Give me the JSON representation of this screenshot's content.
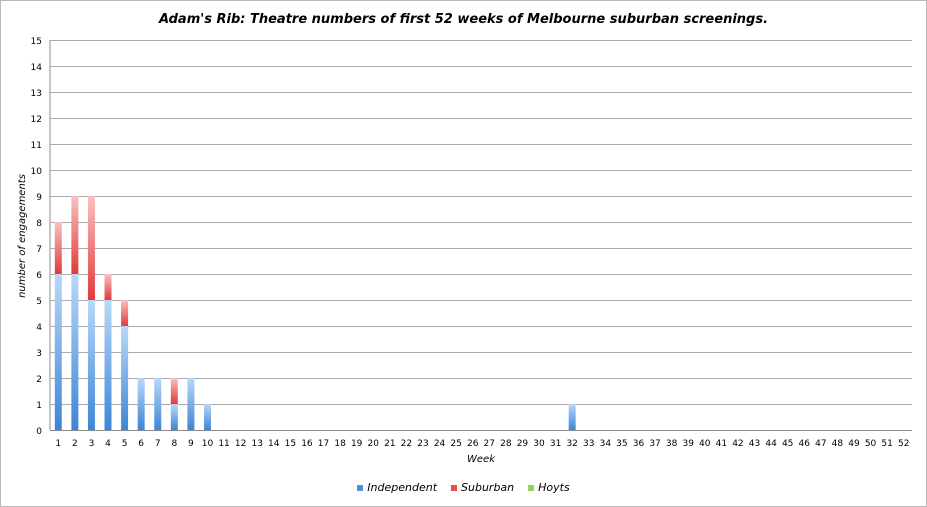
{
  "chart_data": {
    "type": "bar",
    "stacked": true,
    "title": "Adam's Rib: Theatre numbers of first 52 weeks of Melbourne suburban screenings.",
    "xlabel": "Week",
    "ylabel": "number of engagements",
    "ylim": [
      0,
      15
    ],
    "yticks": [
      "0",
      "1",
      "2",
      "3",
      "4",
      "5",
      "6",
      "7",
      "8",
      "9",
      "10",
      "11",
      "12",
      "13",
      "14",
      "15"
    ],
    "grid": true,
    "legend_position": "bottom",
    "categories": [
      "1",
      "2",
      "3",
      "4",
      "5",
      "6",
      "7",
      "8",
      "9",
      "10",
      "11",
      "12",
      "13",
      "14",
      "15",
      "16",
      "17",
      "18",
      "19",
      "20",
      "21",
      "22",
      "23",
      "24",
      "25",
      "26",
      "27",
      "28",
      "29",
      "30",
      "31",
      "32",
      "33",
      "34",
      "35",
      "36",
      "37",
      "38",
      "39",
      "40",
      "41",
      "42",
      "43",
      "44",
      "45",
      "46",
      "47",
      "48",
      "49",
      "50",
      "51",
      "52"
    ],
    "series": [
      {
        "name": "Independent",
        "color": "#4a90d9",
        "values": [
          6,
          6,
          5,
          5,
          4,
          2,
          2,
          1,
          2,
          1,
          0,
          0,
          0,
          0,
          0,
          0,
          0,
          0,
          0,
          0,
          0,
          0,
          0,
          0,
          0,
          0,
          0,
          0,
          0,
          0,
          0,
          1,
          0,
          0,
          0,
          0,
          0,
          0,
          0,
          0,
          0,
          0,
          0,
          0,
          0,
          0,
          0,
          0,
          0,
          0,
          0,
          0
        ]
      },
      {
        "name": "Suburban",
        "color": "#e84c4c",
        "values": [
          2,
          3,
          4,
          1,
          1,
          0,
          0,
          1,
          0,
          0,
          0,
          0,
          0,
          0,
          0,
          0,
          0,
          0,
          0,
          0,
          0,
          0,
          0,
          0,
          0,
          0,
          0,
          0,
          0,
          0,
          0,
          0,
          0,
          0,
          0,
          0,
          0,
          0,
          0,
          0,
          0,
          0,
          0,
          0,
          0,
          0,
          0,
          0,
          0,
          0,
          0,
          0
        ]
      },
      {
        "name": "Hoyts",
        "color": "#8ed45a",
        "values": [
          0,
          0,
          0,
          0,
          0,
          0,
          0,
          0,
          0,
          0,
          0,
          0,
          0,
          0,
          0,
          0,
          0,
          0,
          0,
          0,
          0,
          0,
          0,
          0,
          0,
          0,
          0,
          0,
          0,
          0,
          0,
          0,
          0,
          0,
          0,
          0,
          0,
          0,
          0,
          0,
          0,
          0,
          0,
          0,
          0,
          0,
          0,
          0,
          0,
          0,
          0,
          0
        ]
      }
    ]
  }
}
